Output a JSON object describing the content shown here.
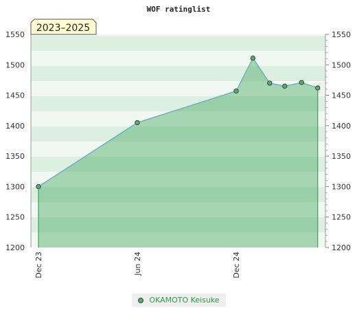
{
  "chart_data": {
    "type": "area",
    "title": "WOF ratinglist",
    "badge": "2023–2025",
    "ylim": [
      1200,
      1550
    ],
    "yticks": [
      1200,
      1250,
      1300,
      1350,
      1400,
      1450,
      1500,
      1550
    ],
    "x_tick_labels": [
      {
        "label": "Dec 23",
        "date": "2023-12-01"
      },
      {
        "label": "Jun 24",
        "date": "2024-06-01"
      },
      {
        "label": "Dec 24",
        "date": "2024-12-01"
      }
    ],
    "grid": "horizontal bands",
    "legend": "bottom-center",
    "series": [
      {
        "name": "OKAMOTO Keisuke",
        "color": "#5fa873",
        "points": [
          {
            "x": "2023-12-01",
            "y": 1300
          },
          {
            "x": "2024-06-01",
            "y": 1405
          },
          {
            "x": "2024-12-01",
            "y": 1457
          },
          {
            "x": "2025-01-01",
            "y": 1511
          },
          {
            "x": "2025-02-01",
            "y": 1470
          },
          {
            "x": "2025-03-01",
            "y": 1465
          },
          {
            "x": "2025-04-01",
            "y": 1471
          },
          {
            "x": "2025-05-01",
            "y": 1462
          }
        ]
      }
    ]
  },
  "legend": {
    "label": "OKAMOTO Keisuke"
  }
}
